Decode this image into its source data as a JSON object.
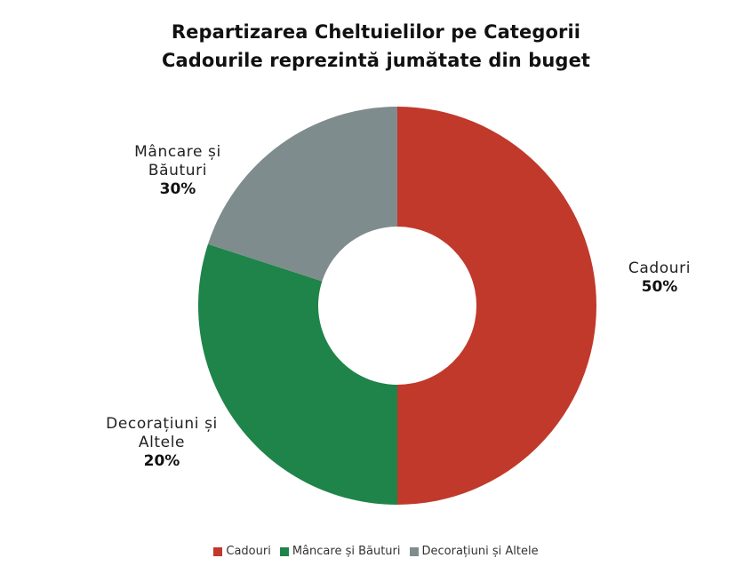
{
  "chart_data": {
    "type": "pie",
    "style": "donut",
    "title": "Repartizarea Cheltuielilor pe Categorii",
    "subtitle": "Cadourile reprezintă jumătate din buget",
    "categories": [
      "Cadouri",
      "Mâncare și Băuturi",
      "Decorațiuni și Altele"
    ],
    "values": [
      50,
      30,
      20
    ],
    "unit": "%",
    "colors": [
      "#c0392b",
      "#1e8449",
      "#7f8c8d"
    ],
    "legend_position": "bottom",
    "data_labels": [
      {
        "name_line1": "Cadouri",
        "name_line2": "",
        "pct": "50%"
      },
      {
        "name_line1": "Mâncare și",
        "name_line2": "Băuturi",
        "pct": "30%"
      },
      {
        "name_line1": "Decorațiuni și",
        "name_line2": "Altele",
        "pct": "20%"
      }
    ]
  },
  "legend": [
    {
      "label": "Cadouri",
      "color": "#c0392b"
    },
    {
      "label": "Mâncare și Băuturi",
      "color": "#1e8449"
    },
    {
      "label": "Decorațiuni și Altele",
      "color": "#7f8c8d"
    }
  ]
}
